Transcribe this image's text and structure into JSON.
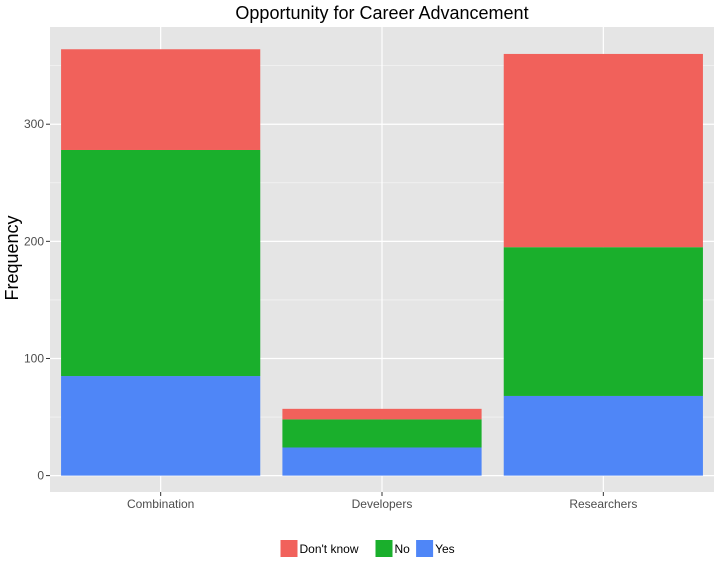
{
  "chart_data": {
    "type": "bar",
    "stacked": true,
    "title": "Opportunity for Career Advancement",
    "xlabel": "",
    "ylabel": "Frequency",
    "categories": [
      "Combination",
      "Developers",
      "Researchers"
    ],
    "series": [
      {
        "name": "Yes",
        "color": "#4F86F7",
        "values": [
          85,
          24,
          68
        ]
      },
      {
        "name": "No",
        "color": "#1AAF2C",
        "values": [
          193,
          24,
          127
        ]
      },
      {
        "name": "Don't know",
        "color": "#F1615B",
        "values": [
          86,
          9,
          165
        ]
      }
    ],
    "ylim": [
      -14,
      383
    ],
    "yticks": [
      0,
      100,
      200,
      300
    ],
    "grid": true,
    "legend_position": "bottom",
    "legend_order": [
      "Don't know",
      "No",
      "Yes"
    ],
    "panel_background": "#E5E5E5",
    "grid_color": "#FFFFFF"
  }
}
